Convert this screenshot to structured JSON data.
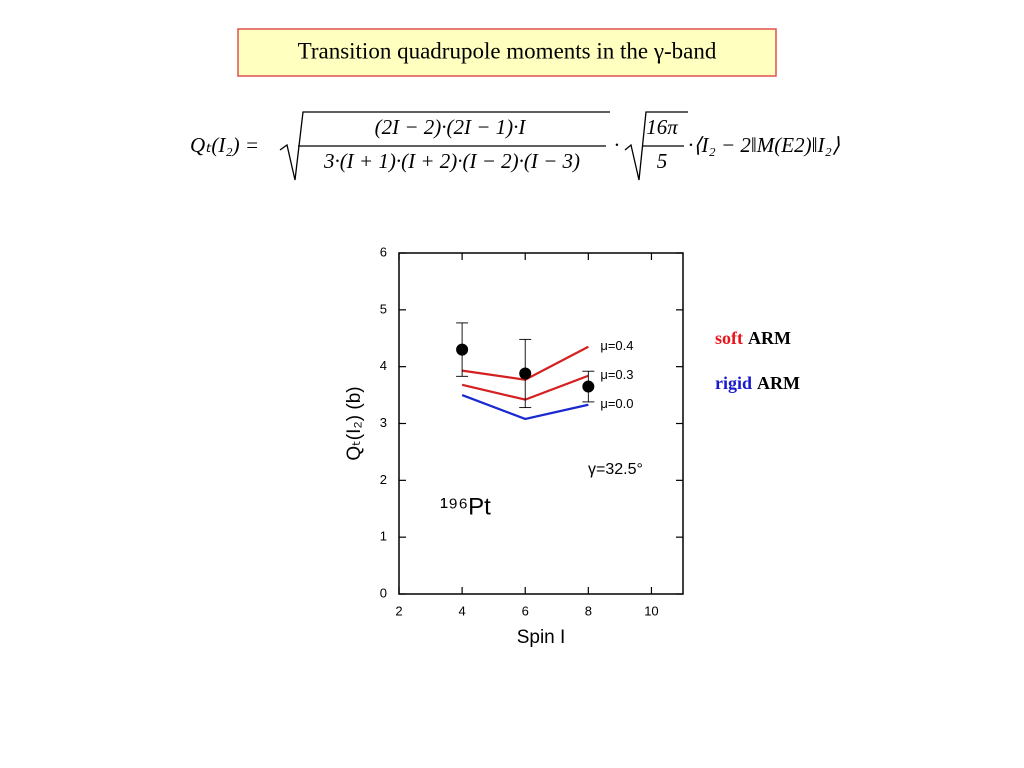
{
  "slide": {
    "title": "Transition quadrupole moments in the γ-band",
    "formula": {
      "lhs": "Qₜ(I₂) =",
      "numerator": "(2I − 2)·(2I − 1)·I",
      "denominator": "3·(I + 1)·(I + 2)·(I − 2)·(I − 3)",
      "dot1": "·",
      "numerator2": "16π",
      "denominator2": "5",
      "matrix_element": "·⟨I₂ − 2‖M(E2)‖I₂⟩"
    },
    "models": [
      {
        "name": "soft",
        "suffix": "ARM",
        "color": "#e8141c"
      },
      {
        "name": "rigid",
        "suffix": "ARM",
        "color": "#1a1acc"
      }
    ]
  },
  "chart_data": {
    "type": "line",
    "xlabel": "Spin I",
    "ylabel": "Qₜ(I₂) (b)",
    "xlim": [
      2,
      11
    ],
    "ylim": [
      0,
      6
    ],
    "xticks": [
      2,
      4,
      6,
      8,
      10
    ],
    "yticks": [
      0,
      1,
      2,
      3,
      4,
      5,
      6
    ],
    "x": [
      4,
      6,
      8
    ],
    "series": [
      {
        "name": "μ=0.4",
        "color": "#d42020",
        "values": [
          3.93,
          3.77,
          4.35
        ]
      },
      {
        "name": "μ=0.3",
        "color": "#d42020",
        "values": [
          3.68,
          3.42,
          3.84
        ]
      },
      {
        "name": "μ=0.0",
        "color": "#1a2ad0",
        "values": [
          3.5,
          3.08,
          3.33
        ]
      }
    ],
    "points": {
      "color": "#000000",
      "values": [
        4.3,
        3.88,
        3.65
      ],
      "errors": [
        0.47,
        0.6,
        0.27
      ]
    },
    "annotations": [
      "γ=32.5°",
      "¹⁹⁶Pt"
    ]
  }
}
